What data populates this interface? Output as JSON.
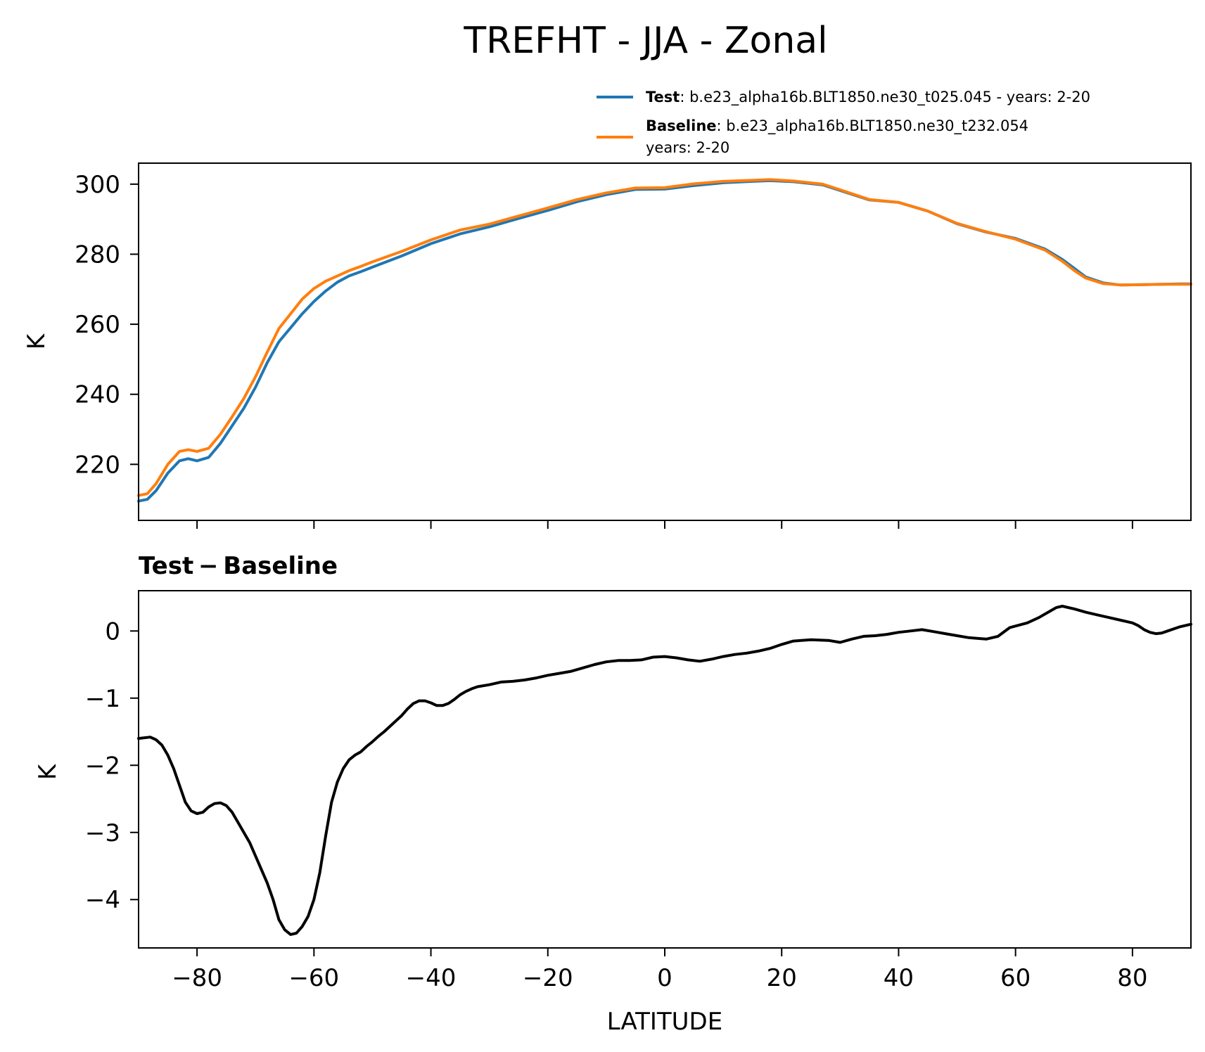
{
  "title": "TREFHT - JJA - Zonal",
  "legend": [
    {
      "bold": "Test",
      "text": ": b.e23_alpha16b.BLT1850.ne30_t025.045 - years: 2-20",
      "line2": "",
      "color": "#1f77b4"
    },
    {
      "bold": "Baseline",
      "text": ": b.e23_alpha16b.BLT1850.ne30_t232.054",
      "line2": "years: 2-20",
      "color": "#ff7f0e"
    }
  ],
  "chart_data": [
    {
      "type": "line",
      "title": "",
      "xlabel": "",
      "ylabel": "K",
      "xlim": [
        -90,
        90
      ],
      "ylim": [
        204,
        306
      ],
      "xticks": [
        -80,
        -60,
        -40,
        -20,
        0,
        20,
        40,
        60,
        80
      ],
      "yticks": [
        220,
        240,
        260,
        280,
        300
      ],
      "ytick_labels": [
        "220",
        "240",
        "260",
        "280",
        "300"
      ],
      "grid": false,
      "legend_position": "above-right",
      "series": [
        {
          "name": "Test",
          "color": "#1f77b4",
          "points": [
            [
              -90,
              209.5
            ],
            [
              -88.5,
              210.0
            ],
            [
              -87,
              212.5
            ],
            [
              -85,
              217.5
            ],
            [
              -83,
              221
            ],
            [
              -81.5,
              221.6
            ],
            [
              -80,
              221
            ],
            [
              -78,
              222
            ],
            [
              -76,
              226
            ],
            [
              -74,
              231
            ],
            [
              -72,
              236
            ],
            [
              -70,
              242
            ],
            [
              -68,
              249
            ],
            [
              -66,
              255
            ],
            [
              -64,
              259
            ],
            [
              -62,
              263
            ],
            [
              -60,
              266.5
            ],
            [
              -58,
              269.5
            ],
            [
              -56,
              272
            ],
            [
              -54,
              273.8
            ],
            [
              -52,
              275
            ],
            [
              -50,
              276.3
            ],
            [
              -45,
              279.5
            ],
            [
              -40,
              283
            ],
            [
              -35,
              285.8
            ],
            [
              -30,
              287.8
            ],
            [
              -25,
              290.2
            ],
            [
              -20,
              292.5
            ],
            [
              -15,
              295
            ],
            [
              -10,
              297
            ],
            [
              -5,
              298.5
            ],
            [
              0,
              298.6
            ],
            [
              5,
              299.6
            ],
            [
              10,
              300.4
            ],
            [
              15,
              300.8
            ],
            [
              18,
              301.0
            ],
            [
              22,
              300.7
            ],
            [
              27,
              299.8
            ],
            [
              30,
              298.2
            ],
            [
              35,
              295.5
            ],
            [
              40,
              294.8
            ],
            [
              45,
              292.3
            ],
            [
              50,
              288.7
            ],
            [
              55,
              286.3
            ],
            [
              60,
              284.5
            ],
            [
              65,
              281.5
            ],
            [
              68,
              278.5
            ],
            [
              70,
              276.0
            ],
            [
              72,
              273.5
            ],
            [
              75,
              271.8
            ],
            [
              78,
              271.2
            ],
            [
              82,
              271.3
            ],
            [
              85,
              271.4
            ],
            [
              88,
              271.5
            ],
            [
              90,
              271.5
            ]
          ]
        },
        {
          "name": "Baseline",
          "color": "#ff7f0e",
          "points": [
            [
              -90,
              211.1
            ],
            [
              -88.5,
              211.6
            ],
            [
              -87,
              214.5
            ],
            [
              -85,
              220.0
            ],
            [
              -83,
              223.7
            ],
            [
              -81.5,
              224.2
            ],
            [
              -80,
              223.7
            ],
            [
              -78,
              224.6
            ],
            [
              -76,
              228.6
            ],
            [
              -74,
              233.6
            ],
            [
              -72,
              238.8
            ],
            [
              -70,
              245.0
            ],
            [
              -68,
              252.0
            ],
            [
              -66,
              258.8
            ],
            [
              -64,
              263.0
            ],
            [
              -62,
              267.2
            ],
            [
              -60,
              270.2
            ],
            [
              -58,
              272.3
            ],
            [
              -56,
              273.8
            ],
            [
              -54,
              275.3
            ],
            [
              -52,
              276.5
            ],
            [
              -50,
              277.8
            ],
            [
              -45,
              280.8
            ],
            [
              -40,
              284.1
            ],
            [
              -35,
              286.9
            ],
            [
              -30,
              288.6
            ],
            [
              -25,
              290.9
            ],
            [
              -20,
              293.2
            ],
            [
              -15,
              295.6
            ],
            [
              -10,
              297.5
            ],
            [
              -5,
              298.9
            ],
            [
              0,
              299.0
            ],
            [
              5,
              300.1
            ],
            [
              10,
              300.8
            ],
            [
              15,
              301.1
            ],
            [
              18,
              301.3
            ],
            [
              22,
              300.9
            ],
            [
              27,
              300.0
            ],
            [
              30,
              298.4
            ],
            [
              35,
              295.6
            ],
            [
              40,
              294.8
            ],
            [
              45,
              292.3
            ],
            [
              50,
              288.8
            ],
            [
              55,
              286.4
            ],
            [
              60,
              284.3
            ],
            [
              65,
              281.2
            ],
            [
              68,
              278.0
            ],
            [
              70,
              275.4
            ],
            [
              72,
              273.2
            ],
            [
              75,
              271.6
            ],
            [
              78,
              271.2
            ],
            [
              82,
              271.3
            ],
            [
              85,
              271.4
            ],
            [
              88,
              271.4
            ],
            [
              90,
              271.4
            ]
          ]
        }
      ]
    },
    {
      "type": "line",
      "title": "Test − Baseline",
      "xlabel": "LATITUDE",
      "ylabel": "K",
      "xlim": [
        -90,
        90
      ],
      "ylim": [
        -4.72,
        0.6
      ],
      "xticks": [
        -80,
        -60,
        -40,
        -20,
        0,
        20,
        40,
        60,
        80
      ],
      "xtick_labels": [
        "−80",
        "−60",
        "−40",
        "−20",
        "0",
        "20",
        "40",
        "60",
        "80"
      ],
      "yticks": [
        -4,
        -3,
        -2,
        -1,
        0
      ],
      "ytick_labels": [
        "−4",
        "−3",
        "−2",
        "−1",
        "0"
      ],
      "grid": false,
      "series": [
        {
          "name": "",
          "color": "#000000",
          "points": [
            [
              -90,
              -1.6
            ],
            [
              -88,
              -1.58
            ],
            [
              -87,
              -1.62
            ],
            [
              -86,
              -1.7
            ],
            [
              -85,
              -1.85
            ],
            [
              -84,
              -2.05
            ],
            [
              -83,
              -2.3
            ],
            [
              -82,
              -2.55
            ],
            [
              -81,
              -2.68
            ],
            [
              -80,
              -2.72
            ],
            [
              -79,
              -2.7
            ],
            [
              -78,
              -2.62
            ],
            [
              -77,
              -2.57
            ],
            [
              -76,
              -2.56
            ],
            [
              -75,
              -2.6
            ],
            [
              -74,
              -2.7
            ],
            [
              -73,
              -2.85
            ],
            [
              -72,
              -3.0
            ],
            [
              -71,
              -3.15
            ],
            [
              -70,
              -3.35
            ],
            [
              -69,
              -3.55
            ],
            [
              -68,
              -3.75
            ],
            [
              -67,
              -4.0
            ],
            [
              -66,
              -4.3
            ],
            [
              -65,
              -4.45
            ],
            [
              -64,
              -4.52
            ],
            [
              -63,
              -4.5
            ],
            [
              -62,
              -4.4
            ],
            [
              -61,
              -4.25
            ],
            [
              -60,
              -4.0
            ],
            [
              -59,
              -3.6
            ],
            [
              -58,
              -3.05
            ],
            [
              -57,
              -2.55
            ],
            [
              -56,
              -2.25
            ],
            [
              -55,
              -2.05
            ],
            [
              -54,
              -1.92
            ],
            [
              -53,
              -1.85
            ],
            [
              -52,
              -1.8
            ],
            [
              -51,
              -1.72
            ],
            [
              -50,
              -1.65
            ],
            [
              -49,
              -1.57
            ],
            [
              -48,
              -1.5
            ],
            [
              -47,
              -1.42
            ],
            [
              -46,
              -1.34
            ],
            [
              -45,
              -1.26
            ],
            [
              -44,
              -1.16
            ],
            [
              -43,
              -1.08
            ],
            [
              -42,
              -1.04
            ],
            [
              -41,
              -1.04
            ],
            [
              -40,
              -1.07
            ],
            [
              -39,
              -1.11
            ],
            [
              -38,
              -1.11
            ],
            [
              -37,
              -1.08
            ],
            [
              -36,
              -1.02
            ],
            [
              -35,
              -0.95
            ],
            [
              -34,
              -0.9
            ],
            [
              -33,
              -0.86
            ],
            [
              -32,
              -0.83
            ],
            [
              -30,
              -0.8
            ],
            [
              -28,
              -0.76
            ],
            [
              -26,
              -0.75
            ],
            [
              -24,
              -0.73
            ],
            [
              -22,
              -0.7
            ],
            [
              -20,
              -0.66
            ],
            [
              -18,
              -0.63
            ],
            [
              -16,
              -0.6
            ],
            [
              -14,
              -0.55
            ],
            [
              -12,
              -0.5
            ],
            [
              -10,
              -0.46
            ],
            [
              -8,
              -0.44
            ],
            [
              -6,
              -0.44
            ],
            [
              -4,
              -0.43
            ],
            [
              -2,
              -0.39
            ],
            [
              0,
              -0.38
            ],
            [
              2,
              -0.4
            ],
            [
              4,
              -0.43
            ],
            [
              6,
              -0.45
            ],
            [
              8,
              -0.42
            ],
            [
              10,
              -0.38
            ],
            [
              12,
              -0.35
            ],
            [
              14,
              -0.33
            ],
            [
              16,
              -0.3
            ],
            [
              18,
              -0.26
            ],
            [
              20,
              -0.2
            ],
            [
              22,
              -0.15
            ],
            [
              25,
              -0.13
            ],
            [
              28,
              -0.14
            ],
            [
              30,
              -0.17
            ],
            [
              32,
              -0.12
            ],
            [
              34,
              -0.08
            ],
            [
              36,
              -0.07
            ],
            [
              38,
              -0.05
            ],
            [
              40,
              -0.02
            ],
            [
              42,
              0.0
            ],
            [
              44,
              0.02
            ],
            [
              46,
              -0.01
            ],
            [
              48,
              -0.04
            ],
            [
              50,
              -0.07
            ],
            [
              52,
              -0.1
            ],
            [
              55,
              -0.12
            ],
            [
              57,
              -0.08
            ],
            [
              59,
              0.05
            ],
            [
              62,
              0.12
            ],
            [
              64,
              0.2
            ],
            [
              66,
              0.3
            ],
            [
              67,
              0.35
            ],
            [
              68,
              0.37
            ],
            [
              70,
              0.33
            ],
            [
              72,
              0.28
            ],
            [
              74,
              0.24
            ],
            [
              76,
              0.2
            ],
            [
              78,
              0.16
            ],
            [
              80,
              0.12
            ],
            [
              81,
              0.08
            ],
            [
              82,
              0.02
            ],
            [
              83,
              -0.02
            ],
            [
              84,
              -0.04
            ],
            [
              85,
              -0.03
            ],
            [
              86,
              0.0
            ],
            [
              88,
              0.06
            ],
            [
              90,
              0.1
            ]
          ]
        }
      ]
    }
  ]
}
